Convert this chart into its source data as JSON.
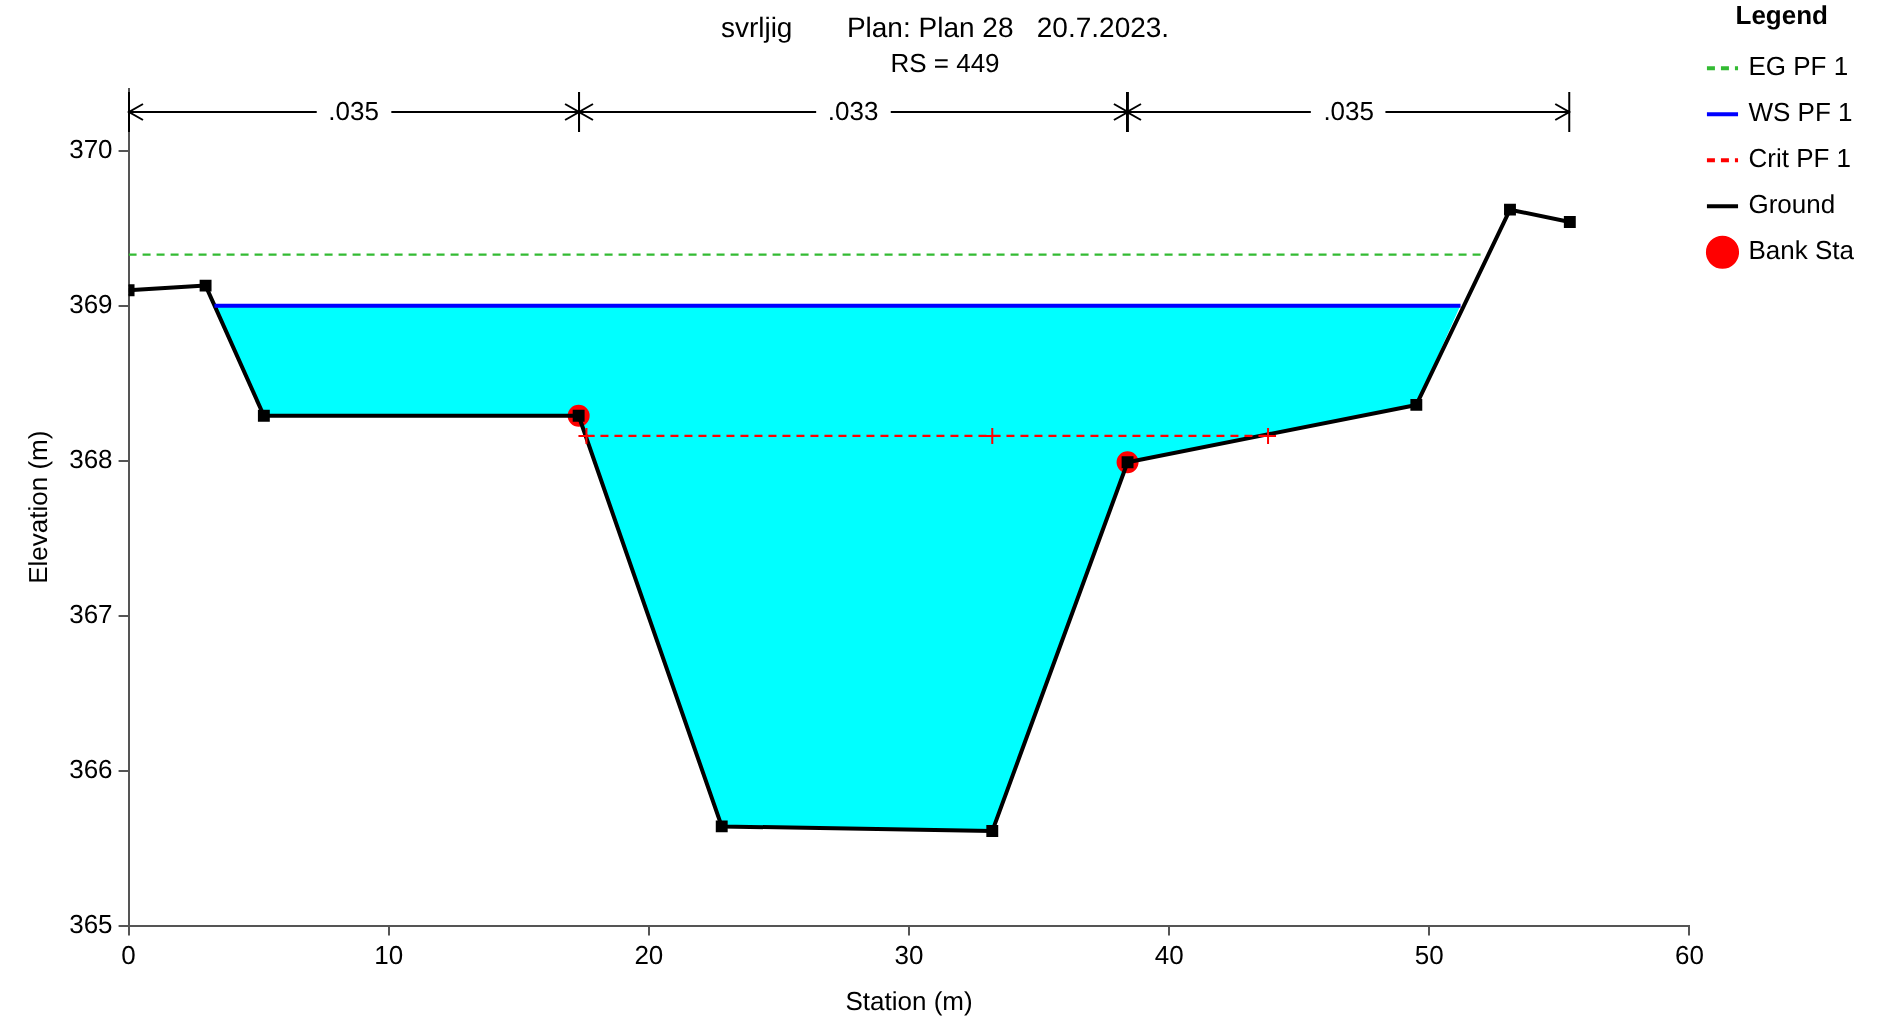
{
  "chart_data": {
    "type": "line",
    "title": "svrljig       Plan: Plan 28   20.7.2023.",
    "subtitle": "RS = 449",
    "xlabel": "Station (m)",
    "ylabel": "Elevation (m)",
    "legend_title": "Legend",
    "annotations": [
      ".035",
      ".033",
      ".035"
    ],
    "xlim": [
      0,
      60
    ],
    "xticks": [
      0,
      10,
      20,
      30,
      40,
      50,
      60
    ],
    "ylim": [
      365,
      370.4
    ],
    "yticks": [
      365,
      366,
      367,
      368,
      369,
      370
    ],
    "grid": false,
    "legend": "right",
    "series": [
      {
        "name": "EG PF 1",
        "color": "#33bb33",
        "line_style": "dashed",
        "marker": "none",
        "x": [
          0,
          52.1
        ],
        "values": [
          369.33,
          369.33
        ]
      },
      {
        "name": "WS PF 1",
        "color": "#0000ff",
        "line_style": "solid",
        "marker": "none",
        "x": [
          3.3,
          51.2
        ],
        "values": [
          369.0,
          369.0
        ]
      },
      {
        "name": "Crit PF 1",
        "color": "#ff0000",
        "line_style": "dashed",
        "marker": "cross",
        "x": [
          17.6,
          33.2,
          43.8
        ],
        "values": [
          368.16,
          368.16,
          368.16
        ]
      },
      {
        "name": "Ground",
        "color": "#000000",
        "line_style": "solid",
        "marker": "square",
        "x": [
          0,
          2.96,
          5.2,
          17.3,
          22.8,
          33.2,
          38.4,
          49.5,
          53.1,
          55.4
        ],
        "values": [
          369.1,
          369.13,
          368.29,
          368.29,
          365.64,
          365.61,
          367.99,
          368.36,
          369.62,
          369.54
        ]
      },
      {
        "name": "Bank Sta",
        "type": "scatter",
        "color": "#ff0000",
        "marker": "circle",
        "x": [
          17.3,
          38.4
        ],
        "values": [
          368.29,
          367.99
        ]
      }
    ]
  }
}
